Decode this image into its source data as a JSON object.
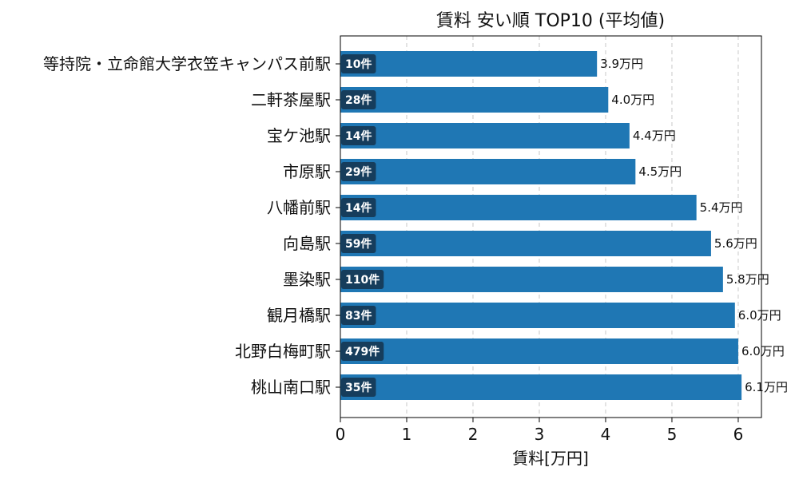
{
  "chart_data": {
    "type": "bar",
    "orientation": "horizontal",
    "title": "賃料 安い順 TOP10 (平均値)",
    "xlabel": "賃料[万円]",
    "ylabel": "",
    "xlim": [
      0,
      6.35
    ],
    "xticks": [
      0,
      1,
      2,
      3,
      4,
      5,
      6
    ],
    "grid": "x",
    "grid_style": "dashed",
    "bar_color": "#1f77b4",
    "count_badge_color": "#163d5c",
    "value_suffix": "万円",
    "count_suffix": "件",
    "categories": [
      "等持院・立命館大学衣笠キャンパス前駅",
      "二軒茶屋駅",
      "宝ケ池駅",
      "市原駅",
      "八幡前駅",
      "向島駅",
      "墨染駅",
      "観月橋駅",
      "北野白梅町駅",
      "桃山南口駅"
    ],
    "values": [
      3.87,
      4.04,
      4.36,
      4.45,
      5.37,
      5.59,
      5.77,
      5.95,
      6.0,
      6.05
    ],
    "value_labels": [
      "3.9万円",
      "4.0万円",
      "4.4万円",
      "4.5万円",
      "5.4万円",
      "5.6万円",
      "5.8万円",
      "6.0万円",
      "6.0万円",
      "6.1万円"
    ],
    "counts": [
      10,
      28,
      14,
      29,
      14,
      59,
      110,
      83,
      479,
      35
    ],
    "count_labels": [
      "10件",
      "28件",
      "14件",
      "29件",
      "14件",
      "59件",
      "110件",
      "83件",
      "479件",
      "35件"
    ]
  }
}
